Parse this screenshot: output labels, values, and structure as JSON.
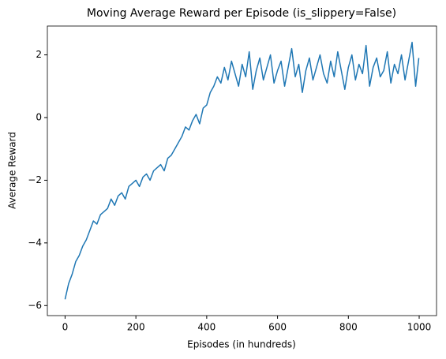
{
  "chart_data": {
    "type": "line",
    "title": "Moving Average Reward per Episode (is_slippery=False)",
    "xlabel": "Episodes (in hundreds)",
    "ylabel": "Average Reward",
    "x": [
      0,
      10,
      20,
      30,
      40,
      50,
      60,
      70,
      80,
      90,
      100,
      110,
      120,
      130,
      140,
      150,
      160,
      170,
      180,
      190,
      200,
      210,
      220,
      230,
      240,
      250,
      260,
      270,
      280,
      290,
      300,
      310,
      320,
      330,
      340,
      350,
      360,
      370,
      380,
      390,
      400,
      410,
      420,
      430,
      440,
      450,
      460,
      470,
      480,
      490,
      500,
      510,
      520,
      530,
      540,
      550,
      560,
      570,
      580,
      590,
      600,
      610,
      620,
      630,
      640,
      650,
      660,
      670,
      680,
      690,
      700,
      710,
      720,
      730,
      740,
      750,
      760,
      770,
      780,
      790,
      800,
      810,
      820,
      830,
      840,
      850,
      860,
      870,
      880,
      890,
      900,
      910,
      920,
      930,
      940,
      950,
      960,
      970,
      980,
      990,
      999
    ],
    "series": [
      {
        "name": "Average Reward",
        "color": "#1f77b4",
        "values": [
          -5.8,
          -5.3,
          -5.0,
          -4.6,
          -4.4,
          -4.1,
          -3.9,
          -3.6,
          -3.3,
          -3.4,
          -3.1,
          -3.0,
          -2.9,
          -2.6,
          -2.8,
          -2.5,
          -2.4,
          -2.6,
          -2.2,
          -2.1,
          -2.0,
          -2.2,
          -1.9,
          -1.8,
          -2.0,
          -1.7,
          -1.6,
          -1.5,
          -1.7,
          -1.3,
          -1.2,
          -1.0,
          -0.8,
          -0.6,
          -0.3,
          -0.4,
          -0.1,
          0.1,
          -0.2,
          0.3,
          0.4,
          0.8,
          1.0,
          1.3,
          1.1,
          1.6,
          1.2,
          1.8,
          1.4,
          1.0,
          1.7,
          1.3,
          2.1,
          0.9,
          1.5,
          1.9,
          1.2,
          1.6,
          2.0,
          1.1,
          1.5,
          1.8,
          1.0,
          1.6,
          2.2,
          1.3,
          1.7,
          0.8,
          1.5,
          1.9,
          1.2,
          1.6,
          2.0,
          1.4,
          1.1,
          1.8,
          1.3,
          2.1,
          1.5,
          0.9,
          1.6,
          2.0,
          1.2,
          1.7,
          1.4,
          2.3,
          1.0,
          1.6,
          1.9,
          1.3,
          1.5,
          2.1,
          1.1,
          1.7,
          1.4,
          2.0,
          1.2,
          1.8,
          2.4,
          1.0,
          1.9
        ]
      }
    ],
    "xlim": [
      -50,
      1049
    ],
    "ylim": [
      -6.32,
      2.92
    ],
    "xticks": [
      0,
      200,
      400,
      600,
      800,
      1000
    ],
    "yticks": [
      {
        "value": -6,
        "label": "−6"
      },
      {
        "value": -4,
        "label": "−4"
      },
      {
        "value": -2,
        "label": "−2"
      },
      0,
      2
    ],
    "grid": false
  }
}
